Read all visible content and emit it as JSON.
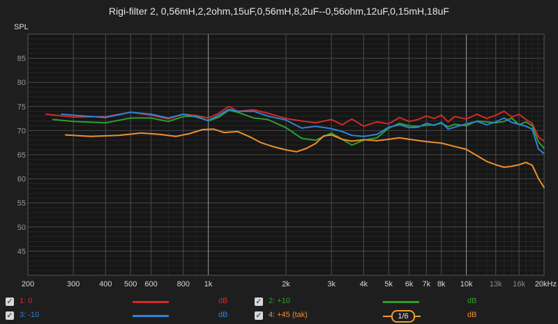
{
  "chart_data": {
    "type": "line",
    "title": "Rigi-filter 2, 0,56mH,2,2ohm,15uF,0,56mH,8,2uF--0,56ohm,12uF,0,15mH,18uF",
    "ylabel": "SPL",
    "xlabel": "",
    "x_scale": "log",
    "xlim": [
      200,
      20000
    ],
    "ylim": [
      40,
      90
    ],
    "grid": true,
    "y_ticks": [
      45,
      50,
      55,
      60,
      65,
      70,
      75,
      80,
      85
    ],
    "x_ticks": [
      {
        "value": 200,
        "label": "200",
        "major": true
      },
      {
        "value": 300,
        "label": "300",
        "major": true
      },
      {
        "value": 400,
        "label": "400",
        "major": true
      },
      {
        "value": 500,
        "label": "500",
        "major": true
      },
      {
        "value": 600,
        "label": "600",
        "major": true
      },
      {
        "value": 800,
        "label": "800",
        "major": true
      },
      {
        "value": 1000,
        "label": "1k",
        "major": true
      },
      {
        "value": 2000,
        "label": "2k",
        "major": true
      },
      {
        "value": 3000,
        "label": "3k",
        "major": true
      },
      {
        "value": 4000,
        "label": "4k",
        "major": true
      },
      {
        "value": 5000,
        "label": "5k",
        "major": true
      },
      {
        "value": 6000,
        "label": "6k",
        "major": true
      },
      {
        "value": 7000,
        "label": "7k",
        "major": true
      },
      {
        "value": 8000,
        "label": "8k",
        "major": true
      },
      {
        "value": 10000,
        "label": "10k",
        "major": true
      },
      {
        "value": 13000,
        "label": "13k",
        "major": false
      },
      {
        "value": 16000,
        "label": "16k",
        "major": false
      },
      {
        "value": 20000,
        "label": "20kHz",
        "major": true
      }
    ],
    "series": [
      {
        "name": "1: 0",
        "color": "#d42a2a",
        "points": [
          [
            235,
            73.4
          ],
          [
            300,
            72.8
          ],
          [
            400,
            72.9
          ],
          [
            500,
            73.8
          ],
          [
            600,
            73.2
          ],
          [
            700,
            72.4
          ],
          [
            800,
            73.4
          ],
          [
            900,
            73.1
          ],
          [
            1000,
            72.6
          ],
          [
            1100,
            73.6
          ],
          [
            1200,
            75.0
          ],
          [
            1300,
            74.0
          ],
          [
            1500,
            74.3
          ],
          [
            1700,
            73.6
          ],
          [
            2000,
            72.5
          ],
          [
            2300,
            72.0
          ],
          [
            2600,
            71.6
          ],
          [
            3000,
            72.3
          ],
          [
            3300,
            71.2
          ],
          [
            3600,
            72.4
          ],
          [
            4000,
            70.9
          ],
          [
            4500,
            71.8
          ],
          [
            5000,
            71.4
          ],
          [
            5500,
            72.7
          ],
          [
            6000,
            71.9
          ],
          [
            6500,
            72.3
          ],
          [
            7000,
            73.0
          ],
          [
            7500,
            72.5
          ],
          [
            8000,
            73.2
          ],
          [
            8500,
            71.8
          ],
          [
            9000,
            72.9
          ],
          [
            10000,
            72.4
          ],
          [
            11000,
            73.4
          ],
          [
            12000,
            72.5
          ],
          [
            13000,
            73.2
          ],
          [
            14000,
            74.0
          ],
          [
            15000,
            72.8
          ],
          [
            16000,
            73.4
          ],
          [
            17000,
            72.3
          ],
          [
            18000,
            71.5
          ],
          [
            19000,
            68.7
          ],
          [
            20000,
            67.8
          ]
        ]
      },
      {
        "name": "2: +10",
        "color": "#2ea02e",
        "points": [
          [
            250,
            72.3
          ],
          [
            300,
            71.9
          ],
          [
            400,
            71.6
          ],
          [
            500,
            72.6
          ],
          [
            600,
            72.6
          ],
          [
            700,
            71.9
          ],
          [
            800,
            72.9
          ],
          [
            900,
            73.0
          ],
          [
            1000,
            72.0
          ],
          [
            1100,
            72.8
          ],
          [
            1200,
            74.2
          ],
          [
            1300,
            73.8
          ],
          [
            1500,
            72.6
          ],
          [
            1700,
            72.3
          ],
          [
            2000,
            70.6
          ],
          [
            2300,
            68.4
          ],
          [
            2600,
            68.0
          ],
          [
            3000,
            69.5
          ],
          [
            3300,
            68.2
          ],
          [
            3600,
            67.0
          ],
          [
            4000,
            68.0
          ],
          [
            4500,
            68.5
          ],
          [
            5000,
            70.5
          ],
          [
            5500,
            71.5
          ],
          [
            6000,
            71.0
          ],
          [
            6500,
            70.9
          ],
          [
            7000,
            71.1
          ],
          [
            7500,
            71.2
          ],
          [
            8000,
            71.5
          ],
          [
            8500,
            70.8
          ],
          [
            9000,
            71.3
          ],
          [
            10000,
            71.0
          ],
          [
            11000,
            72.0
          ],
          [
            12000,
            71.8
          ],
          [
            13000,
            71.6
          ],
          [
            14000,
            71.9
          ],
          [
            15000,
            72.6
          ],
          [
            16000,
            71.2
          ],
          [
            17000,
            71.8
          ],
          [
            18000,
            71.0
          ],
          [
            19000,
            67.7
          ],
          [
            20000,
            66.3
          ]
        ]
      },
      {
        "name": "3: -10",
        "color": "#2c84d8",
        "points": [
          [
            270,
            73.4
          ],
          [
            300,
            73.2
          ],
          [
            400,
            72.7
          ],
          [
            500,
            73.8
          ],
          [
            600,
            73.4
          ],
          [
            700,
            72.6
          ],
          [
            800,
            73.4
          ],
          [
            900,
            72.8
          ],
          [
            1000,
            72.1
          ],
          [
            1100,
            73.2
          ],
          [
            1200,
            74.4
          ],
          [
            1300,
            74.0
          ],
          [
            1500,
            74.0
          ],
          [
            1700,
            73.0
          ],
          [
            2000,
            72.2
          ],
          [
            2300,
            70.5
          ],
          [
            2600,
            70.9
          ],
          [
            3000,
            70.4
          ],
          [
            3300,
            69.8
          ],
          [
            3600,
            69.0
          ],
          [
            4000,
            68.8
          ],
          [
            4500,
            69.2
          ],
          [
            5000,
            70.7
          ],
          [
            5500,
            71.2
          ],
          [
            6000,
            70.6
          ],
          [
            6500,
            70.7
          ],
          [
            7000,
            71.5
          ],
          [
            7500,
            71.1
          ],
          [
            8000,
            71.7
          ],
          [
            8500,
            70.3
          ],
          [
            9000,
            70.7
          ],
          [
            10000,
            71.4
          ],
          [
            11000,
            71.9
          ],
          [
            12000,
            71.2
          ],
          [
            13000,
            71.8
          ],
          [
            14000,
            72.6
          ],
          [
            15000,
            71.7
          ],
          [
            16000,
            71.3
          ],
          [
            17000,
            70.9
          ],
          [
            18000,
            70.3
          ],
          [
            19000,
            66.2
          ],
          [
            20000,
            65.2
          ]
        ]
      },
      {
        "name": "4: +45 (tak)",
        "color": "#ef9030",
        "points": [
          [
            280,
            69.1
          ],
          [
            350,
            68.8
          ],
          [
            450,
            69.0
          ],
          [
            550,
            69.5
          ],
          [
            650,
            69.2
          ],
          [
            750,
            68.8
          ],
          [
            850,
            69.4
          ],
          [
            950,
            70.2
          ],
          [
            1050,
            70.3
          ],
          [
            1150,
            69.6
          ],
          [
            1300,
            69.8
          ],
          [
            1450,
            68.7
          ],
          [
            1600,
            67.5
          ],
          [
            1800,
            66.6
          ],
          [
            2000,
            66.0
          ],
          [
            2200,
            65.6
          ],
          [
            2400,
            66.3
          ],
          [
            2600,
            67.3
          ],
          [
            2800,
            68.9
          ],
          [
            3000,
            69.1
          ],
          [
            3300,
            68.2
          ],
          [
            3600,
            67.8
          ],
          [
            4000,
            68.1
          ],
          [
            4500,
            67.9
          ],
          [
            5000,
            68.2
          ],
          [
            5500,
            68.5
          ],
          [
            6000,
            68.2
          ],
          [
            7000,
            67.7
          ],
          [
            8000,
            67.4
          ],
          [
            9000,
            66.7
          ],
          [
            10000,
            66.1
          ],
          [
            11000,
            64.8
          ],
          [
            12000,
            63.6
          ],
          [
            13000,
            62.9
          ],
          [
            14000,
            62.4
          ],
          [
            15000,
            62.6
          ],
          [
            16000,
            62.9
          ],
          [
            17000,
            63.4
          ],
          [
            18000,
            62.8
          ],
          [
            19000,
            60.1
          ],
          [
            20000,
            58.2
          ]
        ]
      }
    ]
  },
  "legend": [
    {
      "label": "1: 0",
      "unit": "dB",
      "color": "#d42a2a",
      "checked": true
    },
    {
      "label": "2: +10",
      "unit": "dB",
      "color": "#2ea02e",
      "checked": true
    },
    {
      "label": "3: -10",
      "unit": "dB",
      "color": "#2c84d8",
      "checked": true
    },
    {
      "label": "4: +45 (tak)",
      "unit": "dB",
      "color": "#ef9030",
      "checked": true,
      "smoothing": "1/6"
    }
  ],
  "check_mark": "✓"
}
